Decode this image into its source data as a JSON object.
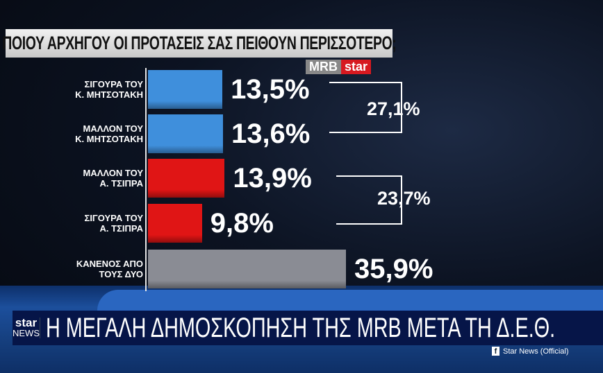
{
  "chart_data": {
    "type": "bar",
    "orientation": "horizontal",
    "title": "ΠΟΙΟΥ ΑΡΧΗΓΟΥ ΟΙ ΠΡΟΤΑΣΕΙΣ ΣΑΣ ΠΕΙΘΟΥΝ ΠΕΡΙΣΣΟΤΕΡΟ;",
    "categories": [
      [
        "ΣΙΓΟΥΡΑ ΤΟΥ",
        "Κ. ΜΗΤΣΟΤΑΚΗ"
      ],
      [
        "ΜΑΛΛΟΝ ΤΟΥ",
        "Κ. ΜΗΤΣΟΤΑΚΗ"
      ],
      [
        "ΜΑΛΛΟΝ ΤΟΥ",
        "Α. ΤΣΙΠΡΑ"
      ],
      [
        "ΣΙΓΟΥΡΑ ΤΟΥ",
        "Α. ΤΣΙΠΡΑ"
      ],
      [
        "ΚΑΝΕΝΟΣ ΑΠΟ",
        "ΤΟΥΣ ΔΥΟ"
      ]
    ],
    "values": [
      13.5,
      13.6,
      13.9,
      9.8,
      35.9
    ],
    "value_labels": [
      "13,5%",
      "13,6%",
      "13,9%",
      "9,8%",
      "35,9%"
    ],
    "colors": [
      "#3f8fdc",
      "#3f8fdc",
      "#e01515",
      "#e01515",
      "#8a8c94"
    ],
    "groups": [
      {
        "label": "27,1%",
        "value": 27.1
      },
      {
        "label": "23,7%",
        "value": 23.7
      }
    ]
  },
  "logo": {
    "mrb": "MRB",
    "star": "star"
  },
  "banner": {
    "channel_top": "star",
    "channel_bottom": "NEWS",
    "headline": "Η ΜΕΓΑΛΗ ΔΗΜΟΣΚΟΠΗΣΗ ΤΗΣ MRB ΜΕΤΑ ΤΗ Δ.Ε.Θ."
  },
  "social": {
    "icon": "facebook-icon",
    "text": "Star News (Official)"
  }
}
